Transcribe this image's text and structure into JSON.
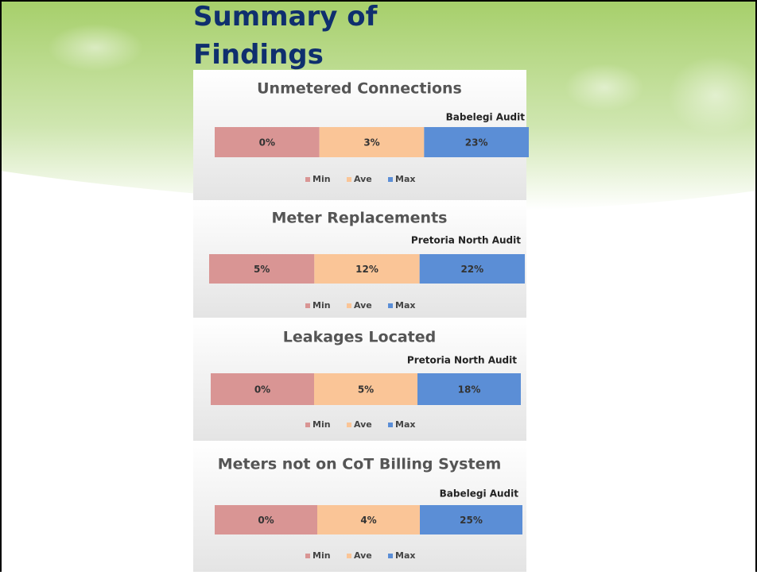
{
  "slide_title": "Summary of Findings",
  "chart_data": [
    {
      "type": "bar",
      "title": "Unmetered Connections",
      "annotation": "Babelegi Audit",
      "series": [
        {
          "name": "Min",
          "color": "#d99594",
          "values": [
            0
          ],
          "value_labels": [
            "0%"
          ]
        },
        {
          "name": "Ave",
          "color": "#fac597",
          "values": [
            3
          ],
          "value_labels": [
            "3%"
          ]
        },
        {
          "name": "Max",
          "color": "#5b8ed6",
          "values": [
            23
          ],
          "value_labels": [
            "23%"
          ]
        }
      ]
    },
    {
      "type": "bar",
      "title": "Meter Replacements",
      "annotation": "Pretoria North Audit",
      "series": [
        {
          "name": "Min",
          "color": "#d99594",
          "values": [
            5
          ],
          "value_labels": [
            "5%"
          ]
        },
        {
          "name": "Ave",
          "color": "#fac597",
          "values": [
            12
          ],
          "value_labels": [
            "12%"
          ]
        },
        {
          "name": "Max",
          "color": "#5b8ed6",
          "values": [
            22
          ],
          "value_labels": [
            "22%"
          ]
        }
      ]
    },
    {
      "type": "bar",
      "title": "Leakages Located",
      "annotation": "Pretoria North Audit",
      "series": [
        {
          "name": "Min",
          "color": "#d99594",
          "values": [
            0
          ],
          "value_labels": [
            "0%"
          ]
        },
        {
          "name": "Ave",
          "color": "#fac597",
          "values": [
            5
          ],
          "value_labels": [
            "5%"
          ]
        },
        {
          "name": "Max",
          "color": "#5b8ed6",
          "values": [
            18
          ],
          "value_labels": [
            "18%"
          ]
        }
      ]
    },
    {
      "type": "bar",
      "title": "Meters not on CoT Billing System",
      "annotation": "Babelegi Audit",
      "series": [
        {
          "name": "Min",
          "color": "#d99594",
          "values": [
            0
          ],
          "value_labels": [
            "0%"
          ]
        },
        {
          "name": "Ave",
          "color": "#fac597",
          "values": [
            4
          ],
          "value_labels": [
            "4%"
          ]
        },
        {
          "name": "Max",
          "color": "#5b8ed6",
          "values": [
            25
          ],
          "value_labels": [
            "25%"
          ]
        }
      ]
    }
  ]
}
